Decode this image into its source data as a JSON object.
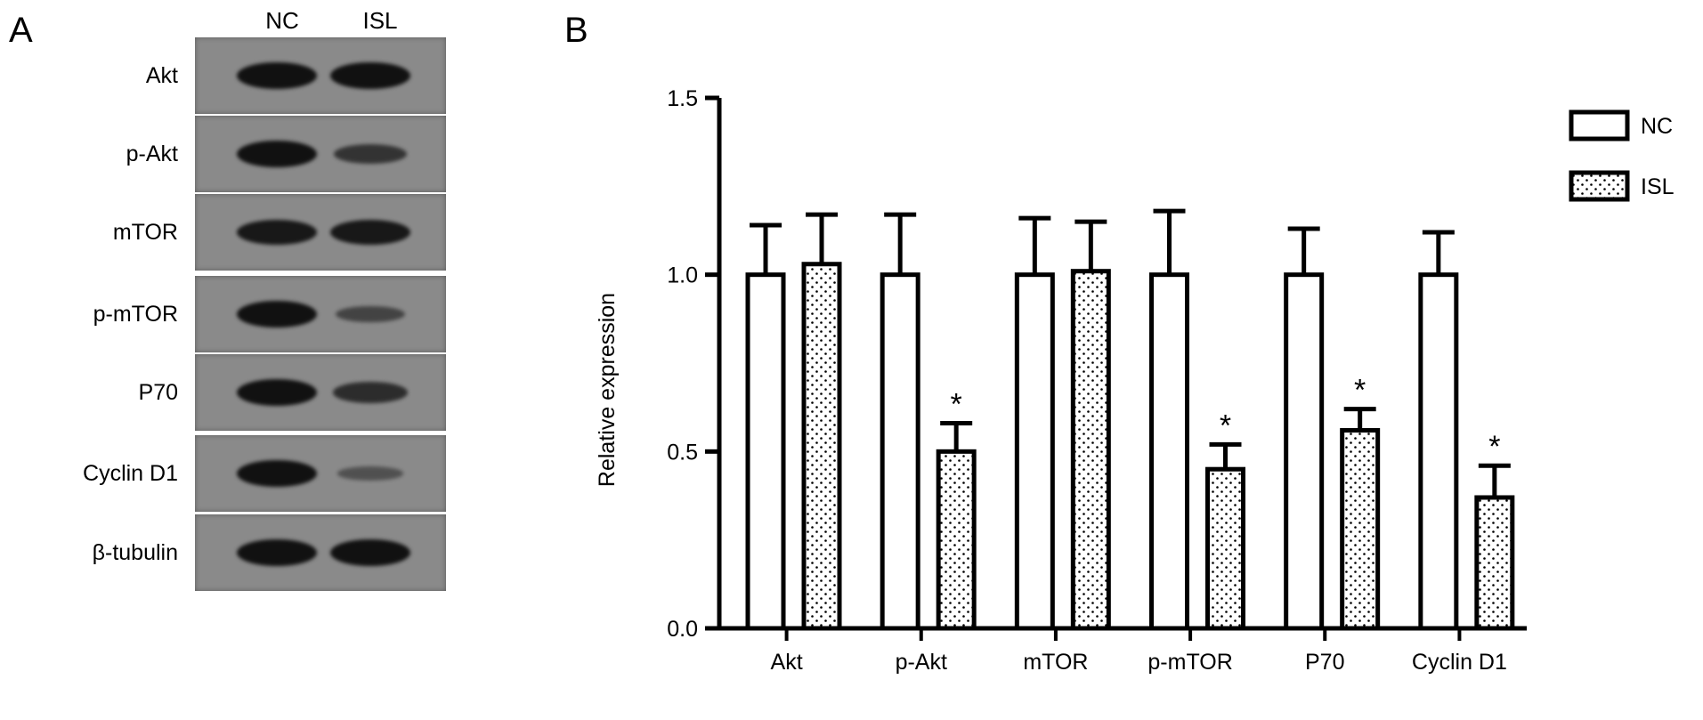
{
  "panel_a": {
    "letter": "A",
    "lanes": [
      "NC",
      "ISL"
    ],
    "blots": [
      {
        "label": "Akt",
        "intensity": [
          1.0,
          1.0
        ]
      },
      {
        "label": "p-Akt",
        "intensity": [
          1.0,
          0.55
        ]
      },
      {
        "label": "mTOR",
        "intensity": [
          0.9,
          0.9
        ]
      },
      {
        "label": "p-mTOR",
        "intensity": [
          1.0,
          0.35
        ]
      },
      {
        "label": "P70",
        "intensity": [
          1.0,
          0.65
        ]
      },
      {
        "label": "Cyclin D1",
        "intensity": [
          1.0,
          0.18
        ]
      },
      {
        "label": "β-tubulin",
        "intensity": [
          1.0,
          1.0
        ]
      }
    ]
  },
  "panel_b": {
    "letter": "B"
  },
  "chart_data": {
    "type": "bar",
    "title": "",
    "xlabel": "",
    "ylabel": "Relative expression",
    "ylim": [
      0,
      1.5
    ],
    "yticks": [
      "0.0",
      "0.5",
      "1.0",
      "1.5"
    ],
    "ytick_values": [
      0,
      0.5,
      1.0,
      1.5
    ],
    "categories": [
      "Akt",
      "p-Akt",
      "mTOR",
      "p-mTOR",
      "P70",
      "Cyclin D1"
    ],
    "series": [
      {
        "name": "NC",
        "values": [
          1.0,
          1.0,
          1.0,
          1.0,
          1.0,
          1.0
        ],
        "errors": [
          0.14,
          0.17,
          0.16,
          0.18,
          0.13,
          0.12
        ],
        "fill": "white"
      },
      {
        "name": "ISL",
        "values": [
          1.03,
          0.5,
          1.01,
          0.45,
          0.56,
          0.37
        ],
        "errors": [
          0.14,
          0.08,
          0.14,
          0.07,
          0.06,
          0.09
        ],
        "fill": "dotted"
      }
    ],
    "significance": [
      "",
      "*",
      "",
      "*",
      "*",
      "*"
    ],
    "legend": {
      "position": "top-right",
      "entries": [
        "NC",
        "ISL"
      ]
    },
    "grid": false
  }
}
